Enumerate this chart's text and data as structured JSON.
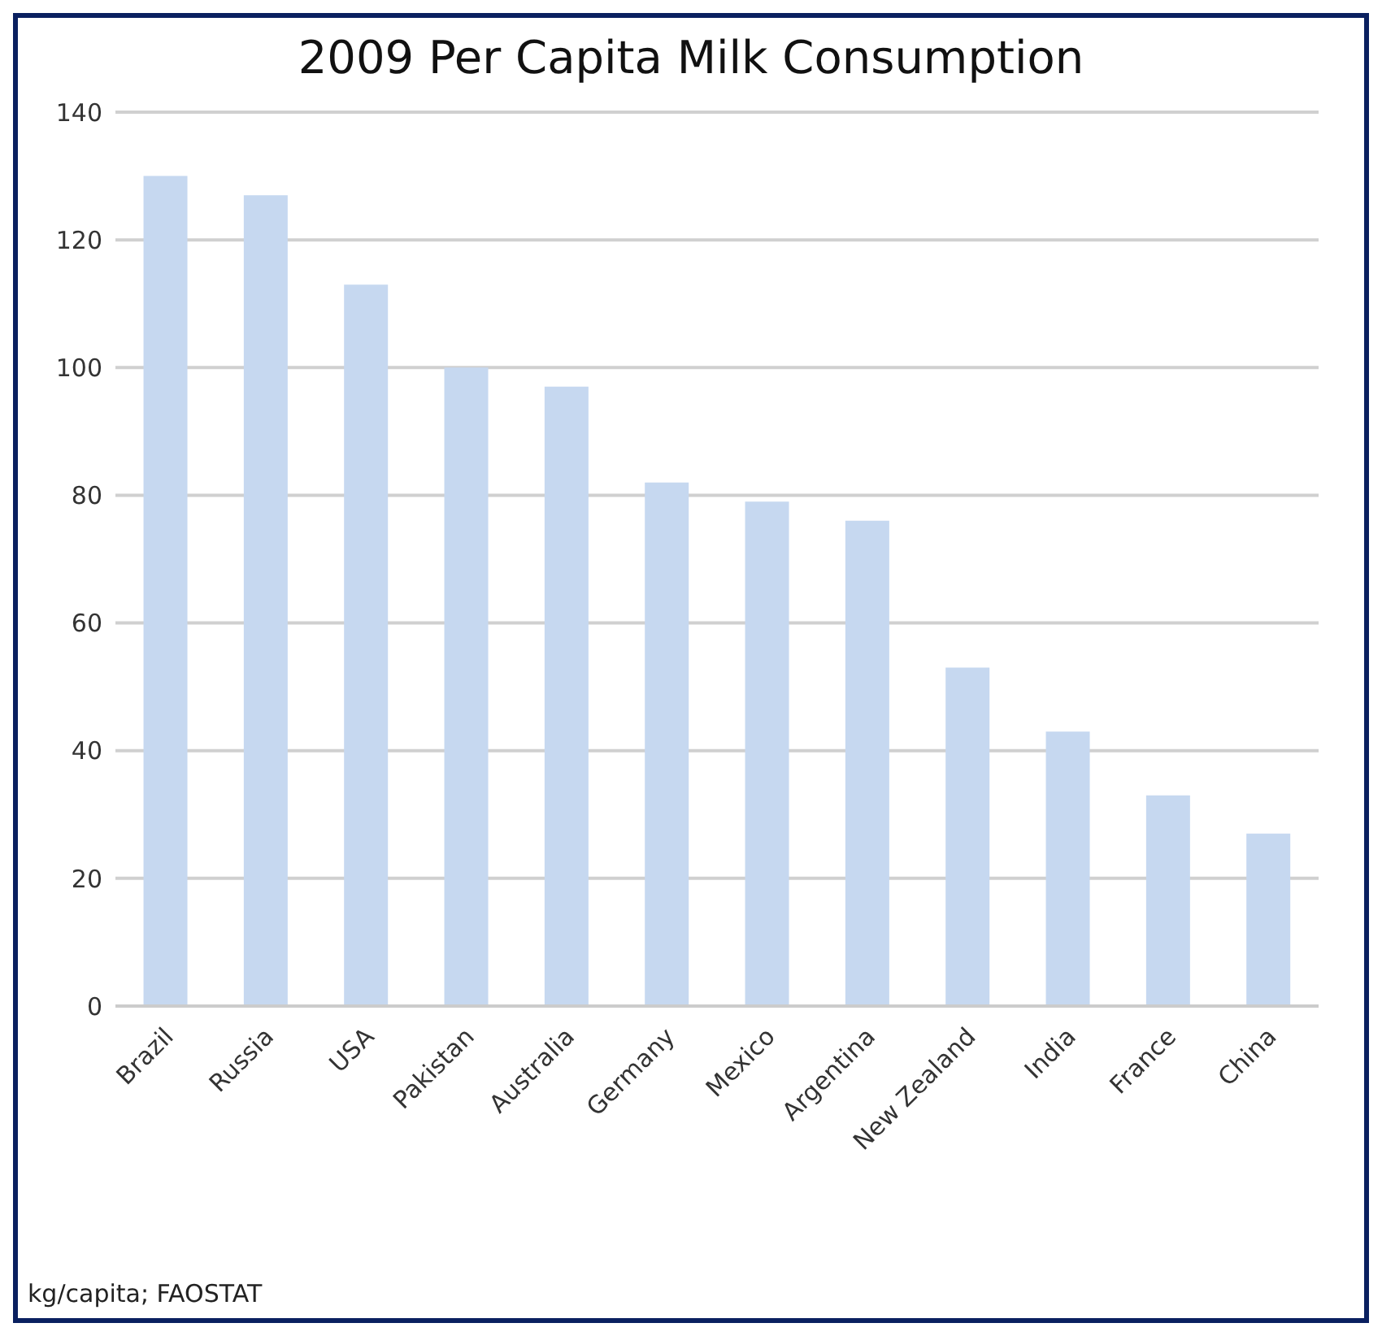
{
  "chart_data": {
    "type": "bar",
    "title": "2009 Per Capita Milk Consumption",
    "categories": [
      "Brazil",
      "Russia",
      "USA",
      "Pakistan",
      "Australia",
      "Germany",
      "Mexico",
      "Argentina",
      "New Zealand",
      "India",
      "France",
      "China"
    ],
    "values": [
      130,
      127,
      113,
      100,
      97,
      82,
      79,
      76,
      53,
      43,
      33,
      27
    ],
    "color": "#c6d8f0",
    "ylim": [
      0,
      140
    ],
    "yticks": [
      0,
      20,
      40,
      60,
      80,
      100,
      120,
      140
    ],
    "grid": "y",
    "annotations": [
      "kg/capita; FAOSTAT"
    ]
  }
}
